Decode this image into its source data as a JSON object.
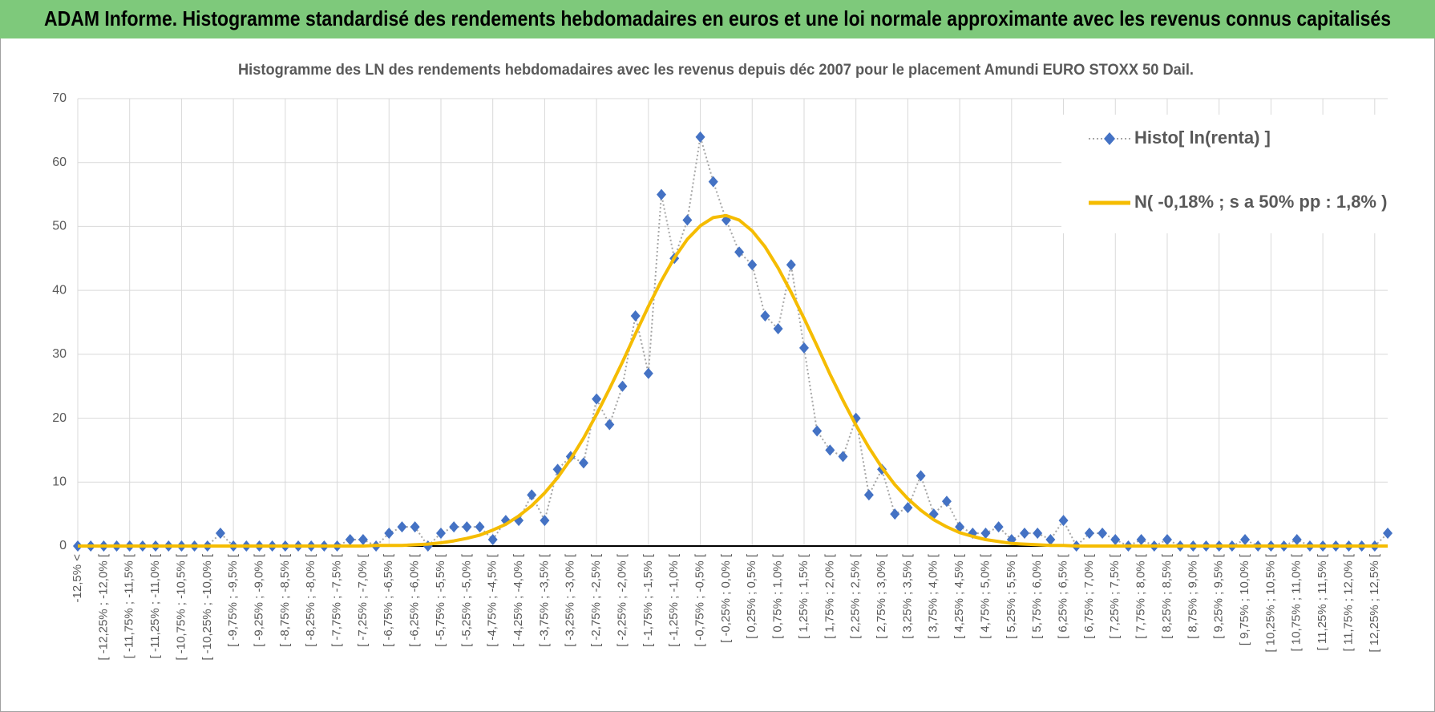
{
  "chart_data": {
    "type": "line",
    "title": "ADAM Informe. Histogramme standardisé des rendements hebdomadaires en euros et une loi normale approximante avec les revenus connus capitalisés",
    "subtitle": "Histogramme des LN des rendements hebdomadaires avec les revenus depuis déc 2007 pour le placement Amundi EURO STOXX 50 Dail.",
    "categories": [
      "-12,5% <",
      null,
      "[ -12,25% ; -12,0% [",
      null,
      "[ -11,75% ; -11,5% [",
      null,
      "[ -11,25% ; -11,0% [",
      null,
      "[ -10,75% ; -10,5% [",
      null,
      "[ -10,25% ; -10,0% [",
      null,
      "[ -9,75% ; -9,5% [",
      null,
      "[ -9,25% ; -9,0% [",
      null,
      "[ -8,75% ; -8,5% [",
      null,
      "[ -8,25% ; -8,0% [",
      null,
      "[ -7,75% ; -7,5% [",
      null,
      "[ -7,25% ; -7,0% [",
      null,
      "[ -6,75% ; -6,5% [",
      null,
      "[ -6,25% ; -6,0% [",
      null,
      "[ -5,75% ; -5,5% [",
      null,
      "[ -5,25% ; -5,0% [",
      null,
      "[ -4,75% ; -4,5% [",
      null,
      "[ -4,25% ; -4,0% [",
      null,
      "[ -3,75% ; -3,5% [",
      null,
      "[ -3,25% ; -3,0% [",
      null,
      "[ -2,75% ; -2,5% [",
      null,
      "[ -2,25% ; -2,0% [",
      null,
      "[ -1,75% ; -1,5% [",
      null,
      "[ -1,25% ; -1,0% [",
      null,
      "[ -0,75% ; -0,5% [",
      null,
      "[ -0,25% ; 0,0% [",
      null,
      "[ 0,25% ; 0,5% [",
      null,
      "[ 0,75% ; 1,0% [",
      null,
      "[ 1,25% ; 1,5% [",
      null,
      "[ 1,75% ; 2,0% [",
      null,
      "[ 2,25% ; 2,5% [",
      null,
      "[ 2,75% ; 3,0% [",
      null,
      "[ 3,25% ; 3,5% [",
      null,
      "[ 3,75% ; 4,0% [",
      null,
      "[ 4,25% ; 4,5% [",
      null,
      "[ 4,75% ; 5,0% [",
      null,
      "[ 5,25% ; 5,5% [",
      null,
      "[ 5,75% ; 6,0% [",
      null,
      "[ 6,25% ; 6,5% [",
      null,
      "[ 6,75% ; 7,0% [",
      null,
      "[ 7,25% ; 7,5% [",
      null,
      "[ 7,75% ; 8,0% [",
      null,
      "[ 8,25% ; 8,5% [",
      null,
      "[ 8,75% ; 9,0% [",
      null,
      "[ 9,25% ; 9,5% [",
      null,
      "[ 9,75% ; 10,0% [",
      null,
      "[ 10,25% ; 10,5% [",
      null,
      "[ 10,75% ; 11,0% [",
      null,
      "[ 11,25% ; 11,5% [",
      null,
      "[ 11,75% ; 12,0% [",
      null,
      "[ 12,25% ; 12,5% [",
      null
    ],
    "series": [
      {
        "name": "Histo[ ln(renta) ]",
        "color": "#4472c4",
        "values": [
          0,
          0,
          0,
          0,
          0,
          0,
          0,
          0,
          0,
          0,
          0,
          2,
          0,
          0,
          0,
          0,
          0,
          0,
          0,
          0,
          0,
          1,
          1,
          0,
          2,
          3,
          3,
          0,
          2,
          3,
          3,
          3,
          1,
          4,
          4,
          8,
          4,
          12,
          14,
          13,
          23,
          19,
          25,
          36,
          27,
          55,
          45,
          51,
          64,
          57,
          51,
          46,
          44,
          36,
          34,
          44,
          31,
          18,
          15,
          14,
          20,
          8,
          12,
          5,
          6,
          11,
          5,
          7,
          3,
          2,
          2,
          3,
          1,
          2,
          2,
          1,
          4,
          0,
          2,
          2,
          1,
          0,
          1,
          0,
          1,
          0,
          0,
          0,
          0,
          0,
          1,
          0,
          0,
          0,
          1,
          0,
          0,
          0,
          0,
          0,
          0,
          2
        ]
      },
      {
        "name": "N( -0,18% ; s a 50% pp : 1,8% )",
        "color": "#f5bc00",
        "values": [
          0,
          0,
          0,
          0,
          0,
          0,
          0,
          0,
          0,
          0,
          0,
          0,
          0,
          0,
          0,
          0,
          0,
          0,
          0,
          0,
          0,
          0,
          0,
          0.1,
          0.1,
          0.1,
          0.2,
          0.3,
          0.5,
          0.8,
          1.2,
          1.7,
          2.5,
          3.4,
          4.7,
          6.3,
          8.3,
          10.7,
          13.6,
          16.9,
          20.6,
          24.6,
          28.8,
          33.2,
          37.5,
          41.5,
          45.1,
          48.0,
          50.1,
          51.4,
          51.7,
          51.0,
          49.3,
          46.8,
          43.5,
          39.7,
          35.6,
          31.3,
          26.9,
          22.8,
          18.9,
          15.4,
          12.3,
          9.6,
          7.4,
          5.6,
          4.1,
          3.0,
          2.1,
          1.5,
          1.0,
          0.7,
          0.4,
          0.3,
          0.2,
          0.1,
          0.1,
          0,
          0,
          0,
          0,
          0,
          0,
          0,
          0,
          0,
          0,
          0,
          0,
          0,
          0,
          0,
          0,
          0,
          0,
          0,
          0,
          0,
          0,
          0,
          0,
          0
        ]
      }
    ],
    "ylim": [
      0,
      70
    ],
    "yticks": [
      0,
      10,
      20,
      30,
      40,
      50,
      60,
      70
    ],
    "grid": true,
    "legend": "upper right"
  }
}
